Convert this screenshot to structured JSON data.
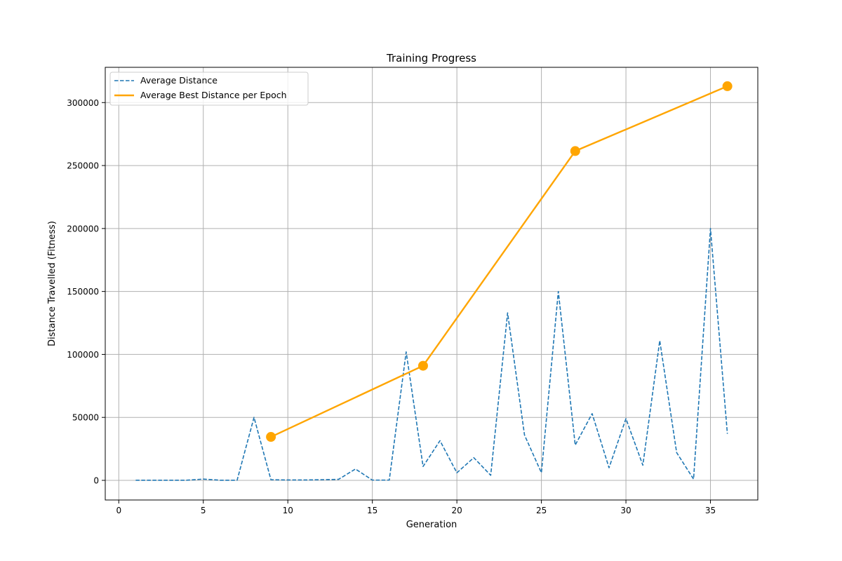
{
  "chart_data": {
    "type": "line",
    "title": "Training Progress",
    "xlabel": "Generation",
    "ylabel": "Distance Travelled (Fitness)",
    "xlim": [
      -0.8,
      37.8
    ],
    "ylim": [
      -15600,
      328000
    ],
    "xticks": [
      0,
      5,
      10,
      15,
      20,
      25,
      30,
      35
    ],
    "yticks": [
      0,
      50000,
      100000,
      150000,
      200000,
      250000,
      300000
    ],
    "grid": true,
    "legend_position": "top-left",
    "series": [
      {
        "name": "Average Distance",
        "style": "dashed",
        "color": "#1f77b4",
        "markers": false,
        "x": [
          1,
          2,
          3,
          4,
          5,
          6,
          7,
          8,
          9,
          10,
          11,
          12,
          13,
          14,
          15,
          16,
          17,
          18,
          19,
          20,
          21,
          22,
          23,
          24,
          25,
          26,
          27,
          28,
          29,
          30,
          31,
          32,
          33,
          34,
          35,
          36
        ],
        "y": [
          100,
          100,
          100,
          100,
          1000,
          100,
          100,
          50000,
          500,
          300,
          300,
          500,
          800,
          9000,
          200,
          200,
          102000,
          11000,
          31500,
          6000,
          18000,
          4000,
          133000,
          36000,
          6000,
          150000,
          28000,
          53000,
          10000,
          49000,
          12000,
          111000,
          22000,
          1000,
          200000,
          37000
        ]
      },
      {
        "name": "Average Best Distance per Epoch",
        "style": "solid",
        "color": "#ffa500",
        "markers": true,
        "x": [
          9,
          18,
          27,
          36
        ],
        "y": [
          34500,
          91000,
          261500,
          313000
        ]
      }
    ]
  }
}
